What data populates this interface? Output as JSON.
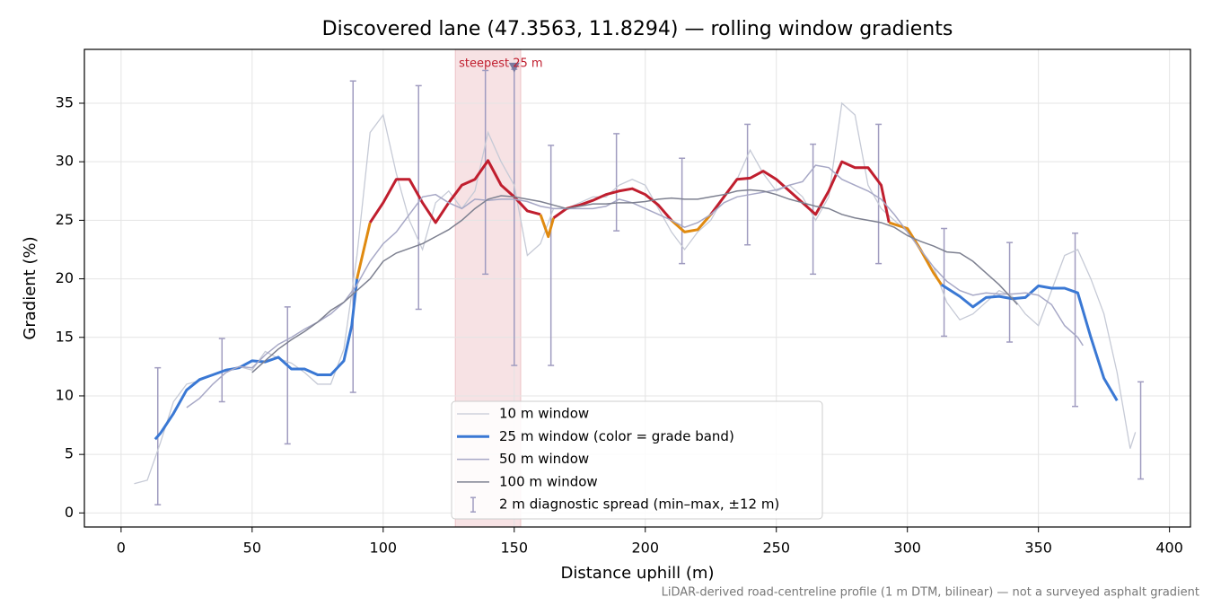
{
  "chart_data": {
    "type": "line",
    "title": "Discovered lane (47.3563, 11.8294) — rolling window gradients",
    "x_label": "Distance uphill (m)",
    "y_label": "Gradient (%)",
    "footnote": "LiDAR-derived road-centreline profile (1 m DTM, bilinear) — not a surveyed asphalt gradient",
    "xlim": [
      -14,
      408
    ],
    "ylim": [
      -1.2,
      39.6
    ],
    "xticks": [
      0,
      50,
      100,
      150,
      200,
      250,
      300,
      350,
      400
    ],
    "yticks": [
      0,
      5,
      10,
      15,
      20,
      25,
      30,
      35
    ],
    "grid": true,
    "legend": "lower center",
    "band_limits": [
      20,
      25
    ],
    "band_colors": [
      "#3a78d4",
      "#e08a10",
      "#c01e2e"
    ],
    "series": [
      {
        "name": "10 m window",
        "color": "#c6cad6",
        "width": 1.3,
        "x": [
          5,
          10,
          15,
          20,
          25,
          30,
          35,
          40,
          45,
          50,
          55,
          60,
          65,
          70,
          75,
          80,
          85,
          90,
          95,
          100,
          105,
          110,
          115,
          120,
          125,
          130,
          135,
          140,
          145,
          150,
          155,
          160,
          165,
          170,
          175,
          180,
          185,
          190,
          195,
          200,
          205,
          210,
          215,
          220,
          225,
          230,
          235,
          240,
          245,
          250,
          255,
          260,
          265,
          270,
          275,
          280,
          285,
          290,
          295,
          300,
          305,
          310,
          315,
          320,
          325,
          330,
          335,
          340,
          345,
          350,
          355,
          360,
          365,
          370,
          375,
          380,
          385,
          387
        ],
        "values": [
          2.5,
          2.8,
          6,
          9.5,
          11,
          11.3,
          11.8,
          12.2,
          12.5,
          12.2,
          13.8,
          13.2,
          12.8,
          12,
          11,
          11,
          14,
          22,
          32.5,
          34,
          29,
          25,
          22.5,
          26.5,
          27.5,
          26,
          27.5,
          32.5,
          30,
          28,
          22,
          23,
          26,
          26,
          26.5,
          27,
          27,
          28,
          28.5,
          28,
          26,
          24,
          22.5,
          24,
          25,
          27,
          28.5,
          31,
          29,
          27.5,
          28,
          27,
          25,
          27,
          35,
          34,
          28,
          26,
          25,
          24,
          22.5,
          21,
          18,
          16.5,
          17,
          18,
          19,
          18.5,
          17,
          16,
          19,
          22,
          22.5,
          20,
          17,
          12,
          5.5,
          6.9
        ]
      },
      {
        "name": "25 m window (color = grade band)",
        "color": "#3a78d4",
        "width": 3,
        "banded": true,
        "x": [
          13,
          15,
          20,
          25,
          30,
          35,
          40,
          45,
          50,
          55,
          60,
          65,
          70,
          75,
          80,
          85,
          88,
          90,
          95,
          100,
          105,
          110,
          115,
          120,
          125,
          130,
          135,
          140,
          145,
          150,
          155,
          160,
          163,
          165,
          170,
          175,
          180,
          185,
          190,
          195,
          200,
          205,
          210,
          215,
          220,
          225,
          230,
          235,
          240,
          245,
          250,
          255,
          260,
          265,
          270,
          275,
          280,
          285,
          290,
          293,
          300,
          305,
          310,
          313,
          320,
          325,
          330,
          335,
          340,
          345,
          350,
          355,
          360,
          365,
          370,
          375,
          380
        ],
        "values": [
          6.3,
          6.8,
          8.5,
          10.5,
          11.4,
          11.8,
          12.2,
          12.4,
          13,
          12.9,
          13.3,
          12.3,
          12.3,
          11.8,
          11.8,
          13,
          16,
          20,
          24.8,
          26.5,
          28.5,
          28.5,
          26.5,
          24.8,
          26.5,
          28,
          28.5,
          30.1,
          28,
          27,
          25.8,
          25.5,
          23.6,
          25.2,
          26,
          26.3,
          26.7,
          27.2,
          27.5,
          27.7,
          27.2,
          26.3,
          25,
          24,
          24.2,
          25.5,
          27,
          28.5,
          28.6,
          29.2,
          28.5,
          27.5,
          26.5,
          25.5,
          27.5,
          30,
          29.5,
          29.5,
          28,
          24.8,
          24.3,
          22.5,
          20.5,
          19.5,
          18.5,
          17.6,
          18.4,
          18.5,
          18.3,
          18.4,
          19.4,
          19.2,
          19.2,
          18.8,
          15,
          11.5,
          9.6
        ]
      },
      {
        "name": "50 m window",
        "color": "#a7a8c6",
        "width": 1.5,
        "x": [
          25,
          30,
          35,
          40,
          45,
          50,
          55,
          60,
          65,
          70,
          75,
          80,
          85,
          90,
          95,
          100,
          105,
          110,
          115,
          120,
          125,
          130,
          135,
          140,
          145,
          150,
          155,
          160,
          165,
          170,
          175,
          180,
          185,
          190,
          195,
          200,
          205,
          210,
          215,
          220,
          225,
          230,
          235,
          240,
          245,
          250,
          255,
          260,
          265,
          270,
          275,
          280,
          285,
          290,
          295,
          300,
          305,
          310,
          315,
          320,
          325,
          330,
          335,
          340,
          345,
          350,
          355,
          360,
          365,
          367
        ],
        "values": [
          9,
          9.8,
          11,
          12,
          12.5,
          12.4,
          13.5,
          14.4,
          15,
          15.7,
          16.3,
          17,
          18,
          19.5,
          21.5,
          23,
          24,
          25.5,
          27,
          27.2,
          26.5,
          26,
          26.8,
          26.7,
          26.8,
          26.8,
          26.6,
          26.2,
          26,
          26,
          26,
          26,
          26.2,
          26.8,
          26.5,
          26,
          25.5,
          25,
          24.4,
          24.8,
          25.5,
          26.5,
          27,
          27.2,
          27.4,
          27.6,
          28,
          28.3,
          29.7,
          29.5,
          28.5,
          28,
          27.5,
          26.8,
          25.5,
          24,
          22.5,
          21,
          19.8,
          19,
          18.6,
          18.8,
          18.7,
          18.7,
          18.8,
          18.6,
          17.8,
          16,
          15,
          14.3
        ]
      },
      {
        "name": "100 m window",
        "color": "#7d8090",
        "width": 1.5,
        "x": [
          50,
          55,
          60,
          65,
          70,
          75,
          80,
          85,
          90,
          95,
          100,
          105,
          110,
          115,
          120,
          125,
          130,
          135,
          140,
          145,
          150,
          155,
          160,
          165,
          170,
          175,
          180,
          185,
          190,
          195,
          200,
          205,
          210,
          215,
          220,
          225,
          230,
          235,
          240,
          245,
          250,
          255,
          260,
          265,
          270,
          275,
          280,
          285,
          290,
          295,
          300,
          305,
          310,
          315,
          320,
          325,
          330,
          335,
          340,
          342
        ],
        "values": [
          12,
          13,
          14,
          14.8,
          15.5,
          16.3,
          17.3,
          18,
          19,
          20,
          21.5,
          22.2,
          22.6,
          23,
          23.6,
          24.2,
          25,
          26,
          26.8,
          27.1,
          27,
          26.8,
          26.6,
          26.3,
          26,
          26.2,
          26.4,
          26.4,
          26.5,
          26.5,
          26.6,
          26.8,
          26.9,
          26.8,
          26.8,
          27,
          27.2,
          27.5,
          27.6,
          27.5,
          27.2,
          26.8,
          26.5,
          26.2,
          26,
          25.5,
          25.2,
          25,
          24.8,
          24.4,
          23.7,
          23.2,
          22.8,
          22.3,
          22.2,
          21.5,
          20.5,
          19.5,
          18.3,
          17.8
        ]
      }
    ],
    "spread": {
      "name": "2 m diagnostic spread (min–max, ±12 m)",
      "color": "#a09cc0",
      "x": [
        14,
        38.5,
        63.5,
        88.5,
        113.5,
        139,
        150,
        164,
        189,
        214,
        239,
        264,
        289,
        314,
        339,
        364,
        389
      ],
      "low": [
        0.7,
        9.5,
        5.9,
        10.3,
        17.4,
        20.4,
        12.6,
        12.6,
        24.1,
        21.3,
        22.9,
        20.4,
        21.3,
        15.1,
        14.6,
        9.1,
        2.9
      ],
      "high": [
        12.4,
        14.9,
        17.6,
        36.9,
        36.5,
        37.8,
        37.9,
        31.4,
        32.4,
        30.3,
        33.2,
        31.5,
        33.2,
        24.3,
        23.1,
        23.9,
        11.2
      ]
    },
    "steepest": {
      "label": "steepest 25 m",
      "start": 127.5,
      "end": 152.5,
      "x": 150,
      "y": 38,
      "color": "#c01e2e"
    }
  }
}
